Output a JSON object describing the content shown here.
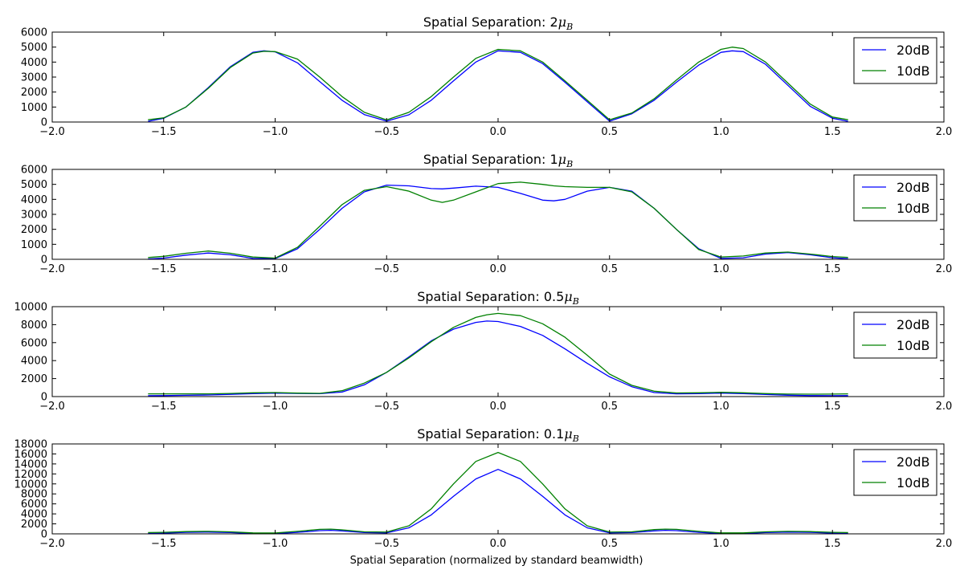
{
  "chart_data": {
    "type": "line",
    "xlabel": "Spatial Separation (normalized by standard beamwidth)",
    "xlim": [
      -2.0,
      2.0
    ],
    "xticks": [
      -2.0,
      -1.5,
      -1.0,
      -0.5,
      0.0,
      0.5,
      1.0,
      1.5,
      2.0
    ],
    "xtick_labels": [
      "−2.0",
      "−1.5",
      "−1.0",
      "−0.5",
      "0.0",
      "0.5",
      "1.0",
      "1.5",
      "2.0"
    ],
    "grid": false,
    "legend_position": "top-right",
    "subplots": [
      {
        "title_main": "Spatial Separation: 2",
        "title_mu": "μ",
        "title_sub": "B",
        "ylim": [
          0,
          6000
        ],
        "yticks": [
          0,
          1000,
          2000,
          3000,
          4000,
          5000,
          6000
        ],
        "x": [
          -1.57,
          -1.5,
          -1.4,
          -1.3,
          -1.2,
          -1.1,
          -1.05,
          -1.0,
          -0.9,
          -0.8,
          -0.7,
          -0.6,
          -0.5,
          -0.4,
          -0.3,
          -0.2,
          -0.1,
          0.0,
          0.1,
          0.2,
          0.3,
          0.4,
          0.5,
          0.6,
          0.7,
          0.8,
          0.9,
          1.0,
          1.05,
          1.1,
          1.2,
          1.3,
          1.4,
          1.5,
          1.57
        ],
        "series": [
          {
            "name": "20dB",
            "color": "#0000ff",
            "values": [
              50,
              250,
              1000,
              2300,
              3700,
              4650,
              4750,
              4680,
              3950,
              2700,
              1450,
              500,
              60,
              480,
              1450,
              2750,
              4000,
              4750,
              4650,
              3900,
              2650,
              1350,
              60,
              550,
              1450,
              2650,
              3800,
              4650,
              4750,
              4700,
              3850,
              2450,
              1050,
              250,
              50
            ]
          },
          {
            "name": "10dB",
            "color": "#008000",
            "values": [
              150,
              280,
              1000,
              2250,
              3650,
              4600,
              4720,
              4700,
              4200,
              3000,
              1700,
              650,
              140,
              650,
              1700,
              3000,
              4250,
              4850,
              4750,
              4000,
              2750,
              1450,
              150,
              600,
              1550,
              2800,
              4000,
              4850,
              5000,
              4900,
              4000,
              2600,
              1200,
              330,
              150
            ]
          }
        ]
      },
      {
        "title_main": "Spatial Separation: 1",
        "title_mu": "μ",
        "title_sub": "B",
        "ylim": [
          0,
          6000
        ],
        "yticks": [
          0,
          1000,
          2000,
          3000,
          4000,
          5000,
          6000
        ],
        "x": [
          -1.57,
          -1.5,
          -1.4,
          -1.3,
          -1.2,
          -1.1,
          -1.0,
          -0.9,
          -0.8,
          -0.7,
          -0.6,
          -0.5,
          -0.4,
          -0.3,
          -0.25,
          -0.2,
          -0.1,
          0.0,
          0.1,
          0.2,
          0.25,
          0.3,
          0.4,
          0.5,
          0.6,
          0.7,
          0.8,
          0.9,
          1.0,
          1.1,
          1.2,
          1.3,
          1.4,
          1.5,
          1.57
        ],
        "series": [
          {
            "name": "20dB",
            "color": "#0000ff",
            "values": [
              20,
              80,
              280,
              420,
              300,
              60,
              50,
              700,
              2000,
              3400,
              4500,
              4950,
              4900,
              4720,
              4700,
              4750,
              4880,
              4800,
              4400,
              3950,
              3900,
              4000,
              4550,
              4800,
              4550,
              3400,
              2000,
              700,
              60,
              100,
              350,
              450,
              300,
              100,
              40
            ]
          },
          {
            "name": "10dB",
            "color": "#008000",
            "values": [
              120,
              200,
              400,
              550,
              400,
              150,
              80,
              800,
              2200,
              3650,
              4600,
              4850,
              4550,
              3950,
              3800,
              3950,
              4500,
              5050,
              5150,
              5000,
              4900,
              4850,
              4800,
              4800,
              4500,
              3400,
              2000,
              650,
              150,
              220,
              420,
              480,
              350,
              180,
              130
            ]
          }
        ]
      },
      {
        "title_main": "Spatial Separation: 0.5",
        "title_mu": "μ",
        "title_sub": "B",
        "ylim": [
          0,
          10000
        ],
        "yticks": [
          0,
          2000,
          4000,
          6000,
          8000,
          10000
        ],
        "x": [
          -1.57,
          -1.5,
          -1.4,
          -1.3,
          -1.2,
          -1.1,
          -1.0,
          -0.9,
          -0.8,
          -0.7,
          -0.6,
          -0.5,
          -0.4,
          -0.3,
          -0.2,
          -0.1,
          -0.05,
          0.0,
          0.1,
          0.2,
          0.3,
          0.4,
          0.5,
          0.6,
          0.7,
          0.8,
          0.9,
          1.0,
          1.1,
          1.2,
          1.3,
          1.4,
          1.5,
          1.57
        ],
        "series": [
          {
            "name": "20dB",
            "color": "#0000ff",
            "values": [
              100,
              110,
              140,
              180,
              250,
              330,
              380,
              350,
              320,
              500,
              1300,
              2700,
              4400,
              6200,
              7500,
              8250,
              8400,
              8350,
              7800,
              6800,
              5300,
              3700,
              2200,
              1100,
              450,
              300,
              330,
              380,
              330,
              230,
              150,
              110,
              100,
              110
            ]
          },
          {
            "name": "10dB",
            "color": "#008000",
            "values": [
              300,
              300,
              300,
              300,
              350,
              420,
              450,
              380,
              360,
              650,
              1500,
              2700,
              4300,
              6100,
              7700,
              8800,
              9100,
              9250,
              9000,
              8100,
              6600,
              4600,
              2500,
              1250,
              600,
              400,
              420,
              470,
              420,
              330,
              280,
              270,
              280,
              300
            ]
          }
        ]
      },
      {
        "title_main": "Spatial Separation: 0.1",
        "title_mu": "μ",
        "title_sub": "B",
        "ylim": [
          0,
          18000
        ],
        "yticks": [
          0,
          2000,
          4000,
          6000,
          8000,
          10000,
          12000,
          14000,
          16000,
          18000
        ],
        "x": [
          -1.57,
          -1.5,
          -1.4,
          -1.3,
          -1.2,
          -1.1,
          -1.0,
          -0.9,
          -0.8,
          -0.75,
          -0.7,
          -0.6,
          -0.5,
          -0.4,
          -0.3,
          -0.2,
          -0.1,
          0.0,
          0.1,
          0.2,
          0.3,
          0.4,
          0.5,
          0.6,
          0.7,
          0.75,
          0.8,
          0.9,
          1.0,
          1.1,
          1.2,
          1.3,
          1.4,
          1.5,
          1.57
        ],
        "series": [
          {
            "name": "20dB",
            "color": "#0000ff",
            "values": [
              50,
              150,
              300,
              350,
              250,
              60,
              50,
              300,
              650,
              700,
              600,
              250,
              200,
              1200,
              3800,
              7500,
              11000,
              12900,
              11000,
              7500,
              3800,
              1200,
              200,
              250,
              600,
              700,
              650,
              300,
              50,
              60,
              250,
              350,
              300,
              150,
              50
            ]
          },
          {
            "name": "10dB",
            "color": "#008000",
            "values": [
              250,
              300,
              450,
              500,
              400,
              200,
              180,
              500,
              900,
              950,
              800,
              400,
              350,
              1600,
              5000,
              10000,
              14500,
              16300,
              14500,
              10000,
              5000,
              1600,
              350,
              400,
              850,
              950,
              900,
              500,
              200,
              200,
              400,
              500,
              450,
              300,
              250
            ]
          }
        ]
      }
    ]
  }
}
